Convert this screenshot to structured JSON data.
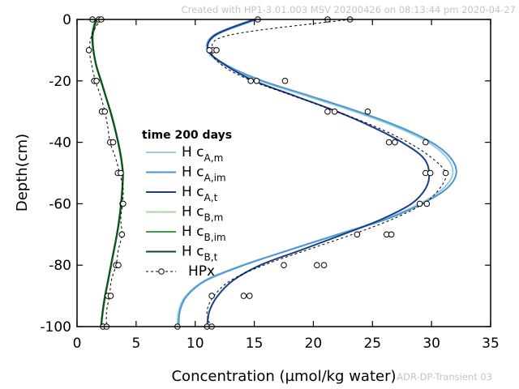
{
  "credit": "Created with HP1-3.01.003 MSV 20200426 on 08:13:44 pm 2020-04-27",
  "case_name": "ADR-DP-Transient 03",
  "chart_data": {
    "type": "line",
    "xlabel": "Concentration (µmol/kg water)",
    "ylabel": "Depth(cm)",
    "xlim": [
      0,
      35
    ],
    "ylim": [
      -100,
      0
    ],
    "xticks": [
      0,
      5,
      10,
      15,
      20,
      25,
      30,
      35
    ],
    "yticks": [
      0,
      -20,
      -40,
      -60,
      -80,
      -100
    ],
    "grid": false,
    "legend": {
      "title": "time 200 days",
      "position": "center-left"
    },
    "y": [
      0,
      -5,
      -10,
      -15,
      -20,
      -25,
      -30,
      -35,
      -40,
      -45,
      -50,
      -55,
      -60,
      -65,
      -70,
      -75,
      -80,
      -85,
      -90,
      -95,
      -100
    ],
    "series": [
      {
        "name": "H c",
        "sub": "A,m",
        "color": "#9ecae1",
        "dash": "",
        "x": [
          14.9,
          11.6,
          11.0,
          12.5,
          15.5,
          19.5,
          23.5,
          27.0,
          29.7,
          31.3,
          31.8,
          31.0,
          29.0,
          26.0,
          22.0,
          18.0,
          14.0,
          10.8,
          9.2,
          8.6,
          8.5
        ]
      },
      {
        "name": "H c",
        "sub": "A,im",
        "color": "#4b98cf",
        "dash": "",
        "x": [
          15.2,
          11.8,
          11.1,
          12.7,
          15.7,
          19.8,
          23.8,
          27.3,
          30.0,
          31.6,
          32.1,
          31.3,
          29.2,
          26.2,
          22.1,
          18.0,
          14.1,
          10.9,
          9.3,
          8.7,
          8.6
        ]
      },
      {
        "name": "H c",
        "sub": "A,t",
        "color": "#1a3e8a",
        "dash": "",
        "x": [
          15.0,
          11.7,
          11.1,
          12.6,
          15.0,
          18.5,
          22.0,
          25.0,
          27.5,
          29.3,
          29.8,
          29.5,
          28.3,
          25.8,
          22.5,
          19.0,
          15.5,
          13.2,
          11.9,
          11.2,
          11.0
        ]
      },
      {
        "name": "H c",
        "sub": "B,m",
        "color": "#a8d7a0",
        "dash": "",
        "x": [
          1.5,
          1.25,
          1.35,
          1.6,
          2.0,
          2.4,
          2.8,
          3.15,
          3.45,
          3.7,
          3.85,
          3.8,
          3.7,
          3.55,
          3.35,
          3.1,
          2.85,
          2.6,
          2.35,
          2.15,
          2.0
        ]
      },
      {
        "name": "H c",
        "sub": "B,im",
        "color": "#3da046",
        "dash": "",
        "x": [
          1.7,
          1.35,
          1.4,
          1.65,
          2.05,
          2.45,
          2.85,
          3.2,
          3.5,
          3.75,
          3.9,
          3.85,
          3.75,
          3.6,
          3.4,
          3.15,
          2.9,
          2.65,
          2.4,
          2.2,
          2.05
        ]
      },
      {
        "name": "H c",
        "sub": "B,t",
        "color": "#0d4a22",
        "dash": "",
        "x": [
          1.6,
          1.3,
          1.38,
          1.62,
          2.02,
          2.42,
          2.82,
          3.17,
          3.47,
          3.72,
          3.87,
          3.83,
          3.72,
          3.57,
          3.37,
          3.12,
          2.87,
          2.62,
          2.37,
          2.17,
          2.03
        ]
      }
    ],
    "hpx": {
      "name": "HPx",
      "color": "#000000",
      "dash": "3,3",
      "curves": [
        {
          "y": [
            0,
            -5,
            -10,
            -15,
            -20,
            -25,
            -30,
            -35,
            -40,
            -45,
            -50,
            -55,
            -60,
            -65,
            -70,
            -75,
            -80,
            -85,
            -90,
            -95,
            -100
          ],
          "x": [
            23.1,
            13.0,
            11.4,
            12.3,
            14.8,
            18.4,
            22.0,
            25.3,
            28.0,
            30.0,
            31.2,
            30.7,
            29.3,
            26.7,
            23.3,
            19.5,
            15.8,
            13.0,
            11.6,
            11.0,
            11.3
          ]
        },
        {
          "y": [
            0,
            -5,
            -10,
            -15,
            -20,
            -25,
            -30,
            -35,
            -40,
            -45,
            -50,
            -55,
            -60,
            -65,
            -70,
            -75,
            -80,
            -85,
            -90,
            -95,
            -100
          ],
          "x": [
            2.0,
            1.25,
            1.05,
            1.25,
            1.55,
            2.0,
            2.35,
            2.6,
            2.8,
            3.25,
            3.6,
            3.9,
            3.85,
            3.7,
            3.8,
            3.5,
            3.3,
            2.9,
            2.75,
            2.5,
            2.5
          ]
        }
      ],
      "points": [
        {
          "x": 15.3,
          "y": 0
        },
        {
          "x": 21.2,
          "y": 0
        },
        {
          "x": 23.1,
          "y": 0
        },
        {
          "x": 11.5,
          "y": -10
        },
        {
          "x": 11.2,
          "y": -10
        },
        {
          "x": 11.8,
          "y": -10
        },
        {
          "x": 14.7,
          "y": -20
        },
        {
          "x": 15.2,
          "y": -20
        },
        {
          "x": 17.6,
          "y": -20
        },
        {
          "x": 21.2,
          "y": -30
        },
        {
          "x": 21.8,
          "y": -30
        },
        {
          "x": 24.6,
          "y": -30
        },
        {
          "x": 26.4,
          "y": -40
        },
        {
          "x": 26.9,
          "y": -40
        },
        {
          "x": 29.5,
          "y": -40
        },
        {
          "x": 29.5,
          "y": -50
        },
        {
          "x": 29.9,
          "y": -50
        },
        {
          "x": 31.2,
          "y": -50
        },
        {
          "x": 29.0,
          "y": -60
        },
        {
          "x": 29.6,
          "y": -60
        },
        {
          "x": 23.7,
          "y": -70
        },
        {
          "x": 26.2,
          "y": -70
        },
        {
          "x": 26.6,
          "y": -70
        },
        {
          "x": 17.5,
          "y": -80
        },
        {
          "x": 20.3,
          "y": -80
        },
        {
          "x": 20.9,
          "y": -80
        },
        {
          "x": 11.4,
          "y": -90
        },
        {
          "x": 14.1,
          "y": -90
        },
        {
          "x": 14.6,
          "y": -90
        },
        {
          "x": 8.5,
          "y": -100
        },
        {
          "x": 11.0,
          "y": -100
        },
        {
          "x": 11.4,
          "y": -100
        },
        {
          "x": 1.3,
          "y": 0
        },
        {
          "x": 1.85,
          "y": 0
        },
        {
          "x": 2.05,
          "y": 0
        },
        {
          "x": 1.0,
          "y": -10
        },
        {
          "x": 1.45,
          "y": -20
        },
        {
          "x": 1.65,
          "y": -20
        },
        {
          "x": 2.1,
          "y": -30
        },
        {
          "x": 2.35,
          "y": -30
        },
        {
          "x": 2.8,
          "y": -40
        },
        {
          "x": 3.05,
          "y": -40
        },
        {
          "x": 3.45,
          "y": -50
        },
        {
          "x": 3.7,
          "y": -50
        },
        {
          "x": 3.85,
          "y": -60
        },
        {
          "x": 3.9,
          "y": -60
        },
        {
          "x": 3.8,
          "y": -70
        },
        {
          "x": 3.3,
          "y": -80
        },
        {
          "x": 3.5,
          "y": -80
        },
        {
          "x": 2.6,
          "y": -90
        },
        {
          "x": 2.85,
          "y": -90
        },
        {
          "x": 2.2,
          "y": -100
        },
        {
          "x": 2.5,
          "y": -100
        }
      ]
    }
  }
}
